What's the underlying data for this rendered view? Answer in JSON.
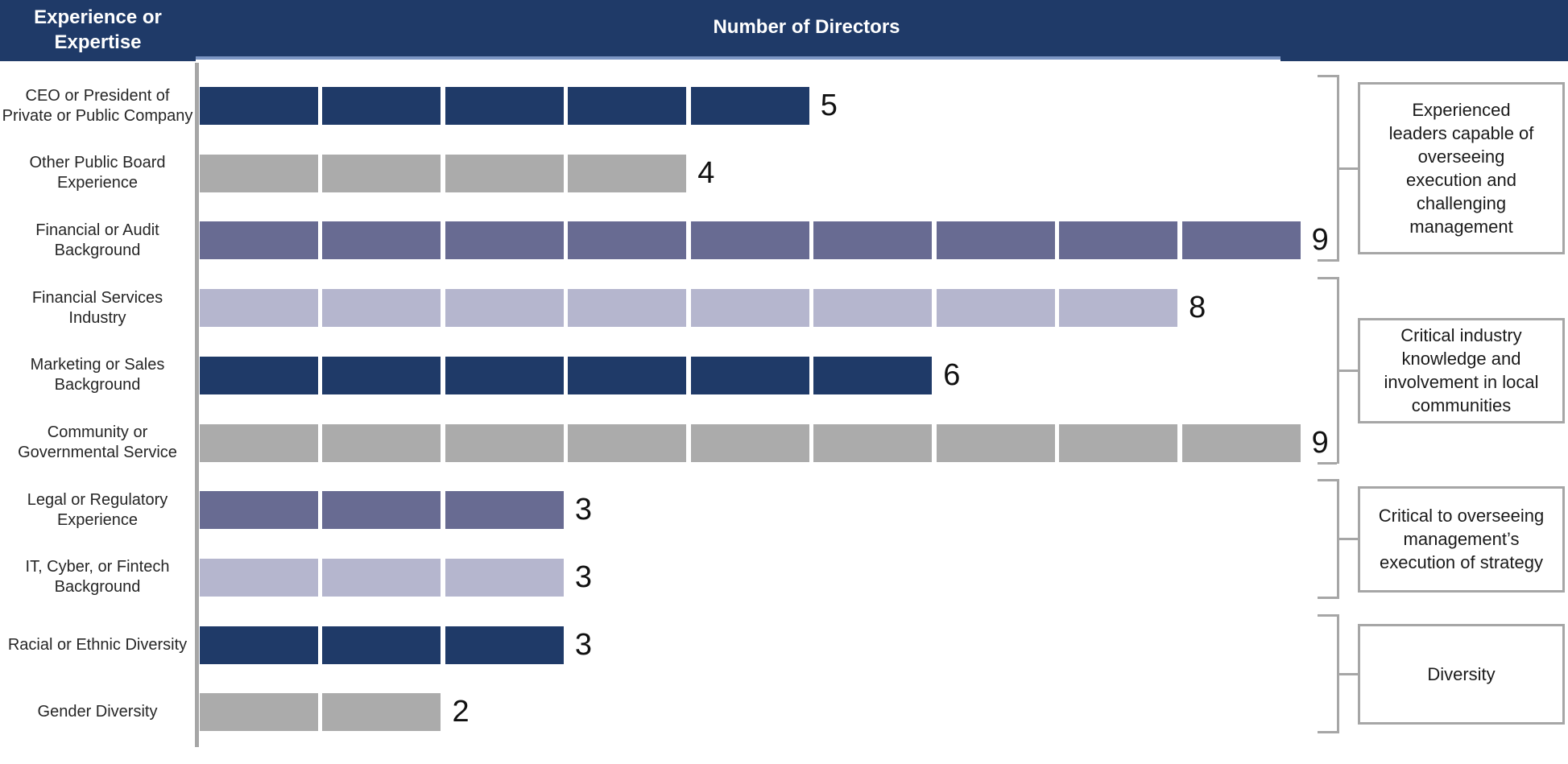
{
  "header": {
    "left_title": "Experience or\nExpertise",
    "right_title": "Number of Directors"
  },
  "colors": {
    "header_bg": "#1F3A68",
    "header_text": "#FFFFFF",
    "header_underline": "#7C96C4",
    "navy": "#1F3A68",
    "slate": "#686B92",
    "lavender": "#B5B6CE",
    "gray": "#ABABAB",
    "line_gray": "#A6A6A6",
    "label_text": "#262626",
    "value_text": "#111111"
  },
  "chart_data": {
    "type": "bar",
    "orientation": "horizontal",
    "title": "",
    "xlabel": "Number of Directors",
    "ylabel": "Experience or Expertise",
    "xlim": [
      0,
      11
    ],
    "grid": false,
    "legend": false,
    "segmented_unit_bars": true,
    "categories": [
      "CEO or President of\nPrivate or Public Company",
      "Other Public Board\nExperience",
      "Financial or Audit\nBackground",
      "Financial Services\nIndustry",
      "Marketing or Sales\nBackground",
      "Community or\nGovernmental Service",
      "Legal or Regulatory\nExperience",
      "IT, Cyber, or Fintech\nBackground",
      "Racial or Ethnic Diversity",
      "Gender Diversity"
    ],
    "values": [
      5,
      4,
      9,
      8,
      6,
      9,
      3,
      3,
      3,
      2
    ],
    "bar_color_keys": [
      "navy",
      "gray",
      "slate",
      "lavender",
      "navy",
      "gray",
      "slate",
      "lavender",
      "navy",
      "gray"
    ],
    "groups": [
      {
        "rows": [
          0,
          1,
          2
        ],
        "label": "Experienced\nleaders capable of\noverseeing\nexecution and\nchallenging\nmanagement"
      },
      {
        "rows": [
          3,
          4,
          5
        ],
        "label": "Critical industry\nknowledge and\ninvolvement in local\ncommunities"
      },
      {
        "rows": [
          6,
          7
        ],
        "label": "Critical to overseeing\nmanagement’s\nexecution of strategy"
      },
      {
        "rows": [
          8,
          9
        ],
        "label": "Diversity"
      }
    ]
  }
}
